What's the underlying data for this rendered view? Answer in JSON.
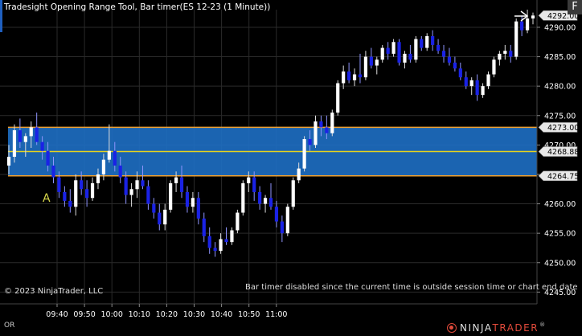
{
  "header": {
    "title": "Tradesight Opening Range Tool, Bar timer(ES 12-23 (1 Minute))",
    "corner_label": "F"
  },
  "footer": {
    "copyright": "© 2023 NinjaTrader, LLC",
    "bar_timer_message": "Bar timer disabled since the current time is outside session time or chart end date",
    "mode_label": "OR",
    "brand_prefix": "NINJA",
    "brand_suffix": "TRADER",
    "brand_mark": "®"
  },
  "chart_data": {
    "type": "candlestick",
    "instrument": "ES 12-23",
    "interval": "1 Minute",
    "ylim": [
      4243,
      4293
    ],
    "y_ticks": [
      4245,
      4250,
      4255,
      4260,
      4265,
      4270,
      4275,
      4280,
      4285,
      4290
    ],
    "y_tick_labels": [
      "4245.00",
      "4250.00",
      "4255.00",
      "4260.00",
      "4265.00",
      "4270.00",
      "4275.00",
      "4280.00",
      "4285.00",
      "4290.00"
    ],
    "x_ticks": [
      "09:40",
      "09:50",
      "10:00",
      "10:10",
      "10:20",
      "10:30",
      "10:40",
      "10:50",
      "11:00"
    ],
    "opening_range": {
      "high": 4273.0,
      "mid": 4268.88,
      "low": 4264.75,
      "high_label": "4273.00",
      "mid_label": "4268.88",
      "low_label": "4264.75",
      "annotation": "A"
    },
    "last_price": 4292.0,
    "last_price_label": "4292.00",
    "colors": {
      "up": "#ffffff",
      "down": "#1a22e6",
      "range_fill": "#1e6fc4",
      "range_border": "#f0a030",
      "range_mid": "#e6d21e",
      "grid": "#2a2a2a",
      "axis_text": "#ffffff",
      "annotation": "#d8d84a"
    },
    "candles": [
      {
        "o": 4266.5,
        "h": 4270.0,
        "l": 4265.0,
        "c": 4268.0
      },
      {
        "o": 4268.0,
        "h": 4273.5,
        "l": 4267.0,
        "c": 4272.5
      },
      {
        "o": 4272.5,
        "h": 4274.5,
        "l": 4269.5,
        "c": 4270.5
      },
      {
        "o": 4270.5,
        "h": 4272.0,
        "l": 4268.0,
        "c": 4271.5
      },
      {
        "o": 4271.5,
        "h": 4274.0,
        "l": 4269.5,
        "c": 4273.0
      },
      {
        "o": 4273.0,
        "h": 4275.5,
        "l": 4270.0,
        "c": 4270.5
      },
      {
        "o": 4270.5,
        "h": 4271.5,
        "l": 4267.5,
        "c": 4269.0
      },
      {
        "o": 4269.0,
        "h": 4270.5,
        "l": 4265.5,
        "c": 4266.5
      },
      {
        "o": 4266.5,
        "h": 4268.0,
        "l": 4263.5,
        "c": 4264.5
      },
      {
        "o": 4264.5,
        "h": 4265.5,
        "l": 4261.0,
        "c": 4262.0
      },
      {
        "o": 4262.0,
        "h": 4263.0,
        "l": 4259.5,
        "c": 4260.5
      },
      {
        "o": 4260.5,
        "h": 4262.5,
        "l": 4258.5,
        "c": 4259.5
      },
      {
        "o": 4259.5,
        "h": 4265.0,
        "l": 4258.0,
        "c": 4264.0
      },
      {
        "o": 4264.0,
        "h": 4265.5,
        "l": 4261.5,
        "c": 4262.5
      },
      {
        "o": 4262.5,
        "h": 4264.0,
        "l": 4259.5,
        "c": 4261.0
      },
      {
        "o": 4261.0,
        "h": 4264.5,
        "l": 4260.5,
        "c": 4263.5
      },
      {
        "o": 4263.5,
        "h": 4266.0,
        "l": 4262.5,
        "c": 4265.0
      },
      {
        "o": 4265.0,
        "h": 4268.5,
        "l": 4264.0,
        "c": 4267.5
      },
      {
        "o": 4267.5,
        "h": 4273.5,
        "l": 4267.0,
        "c": 4269.0
      },
      {
        "o": 4269.0,
        "h": 4270.5,
        "l": 4265.5,
        "c": 4266.5
      },
      {
        "o": 4266.5,
        "h": 4268.0,
        "l": 4263.5,
        "c": 4264.5
      },
      {
        "o": 4264.5,
        "h": 4265.5,
        "l": 4260.0,
        "c": 4261.5
      },
      {
        "o": 4261.5,
        "h": 4263.5,
        "l": 4259.5,
        "c": 4262.5
      },
      {
        "o": 4262.5,
        "h": 4265.5,
        "l": 4261.0,
        "c": 4264.0
      },
      {
        "o": 4264.0,
        "h": 4266.5,
        "l": 4262.5,
        "c": 4263.0
      },
      {
        "o": 4263.0,
        "h": 4264.0,
        "l": 4259.0,
        "c": 4260.0
      },
      {
        "o": 4260.0,
        "h": 4261.0,
        "l": 4257.5,
        "c": 4258.5
      },
      {
        "o": 4258.5,
        "h": 4260.0,
        "l": 4255.5,
        "c": 4256.5
      },
      {
        "o": 4256.5,
        "h": 4260.0,
        "l": 4255.5,
        "c": 4259.0
      },
      {
        "o": 4259.0,
        "h": 4264.0,
        "l": 4258.5,
        "c": 4263.5
      },
      {
        "o": 4263.5,
        "h": 4265.5,
        "l": 4262.0,
        "c": 4264.5
      },
      {
        "o": 4264.5,
        "h": 4266.5,
        "l": 4261.0,
        "c": 4262.0
      },
      {
        "o": 4262.0,
        "h": 4263.0,
        "l": 4258.5,
        "c": 4259.5
      },
      {
        "o": 4259.5,
        "h": 4262.0,
        "l": 4258.5,
        "c": 4261.0
      },
      {
        "o": 4261.0,
        "h": 4262.0,
        "l": 4256.5,
        "c": 4257.5
      },
      {
        "o": 4257.5,
        "h": 4258.5,
        "l": 4253.5,
        "c": 4254.5
      },
      {
        "o": 4254.5,
        "h": 4256.0,
        "l": 4251.5,
        "c": 4252.5
      },
      {
        "o": 4252.5,
        "h": 4253.5,
        "l": 4251.0,
        "c": 4252.0
      },
      {
        "o": 4252.0,
        "h": 4255.0,
        "l": 4251.5,
        "c": 4254.0
      },
      {
        "o": 4254.0,
        "h": 4256.0,
        "l": 4253.0,
        "c": 4253.5
      },
      {
        "o": 4253.5,
        "h": 4256.0,
        "l": 4253.0,
        "c": 4255.5
      },
      {
        "o": 4255.5,
        "h": 4259.0,
        "l": 4255.0,
        "c": 4258.5
      },
      {
        "o": 4258.5,
        "h": 4264.0,
        "l": 4258.0,
        "c": 4263.5
      },
      {
        "o": 4263.5,
        "h": 4265.5,
        "l": 4262.0,
        "c": 4264.5
      },
      {
        "o": 4264.5,
        "h": 4265.5,
        "l": 4260.5,
        "c": 4262.0
      },
      {
        "o": 4262.0,
        "h": 4263.0,
        "l": 4259.0,
        "c": 4260.0
      },
      {
        "o": 4260.0,
        "h": 4261.5,
        "l": 4258.5,
        "c": 4261.0
      },
      {
        "o": 4261.0,
        "h": 4263.5,
        "l": 4259.0,
        "c": 4259.5
      },
      {
        "o": 4259.5,
        "h": 4260.5,
        "l": 4256.0,
        "c": 4257.0
      },
      {
        "o": 4257.0,
        "h": 4258.0,
        "l": 4253.5,
        "c": 4255.0
      },
      {
        "o": 4255.0,
        "h": 4260.0,
        "l": 4254.5,
        "c": 4259.5
      },
      {
        "o": 4259.5,
        "h": 4264.5,
        "l": 4259.0,
        "c": 4264.0
      },
      {
        "o": 4264.0,
        "h": 4267.0,
        "l": 4263.5,
        "c": 4266.0
      },
      {
        "o": 4266.0,
        "h": 4271.5,
        "l": 4265.5,
        "c": 4271.0
      },
      {
        "o": 4271.0,
        "h": 4272.5,
        "l": 4269.0,
        "c": 4270.0
      },
      {
        "o": 4270.0,
        "h": 4275.0,
        "l": 4269.5,
        "c": 4274.0
      },
      {
        "o": 4274.0,
        "h": 4275.0,
        "l": 4271.5,
        "c": 4273.0
      },
      {
        "o": 4273.0,
        "h": 4275.0,
        "l": 4271.0,
        "c": 4272.0
      },
      {
        "o": 4272.0,
        "h": 4276.0,
        "l": 4271.5,
        "c": 4275.5
      },
      {
        "o": 4275.5,
        "h": 4281.0,
        "l": 4275.0,
        "c": 4280.5
      },
      {
        "o": 4280.5,
        "h": 4283.5,
        "l": 4279.5,
        "c": 4282.5
      },
      {
        "o": 4282.5,
        "h": 4284.0,
        "l": 4280.5,
        "c": 4281.0
      },
      {
        "o": 4281.0,
        "h": 4283.0,
        "l": 4280.0,
        "c": 4282.0
      },
      {
        "o": 4282.0,
        "h": 4285.5,
        "l": 4280.5,
        "c": 4281.5
      },
      {
        "o": 4281.5,
        "h": 4286.0,
        "l": 4281.0,
        "c": 4285.0
      },
      {
        "o": 4285.0,
        "h": 4286.5,
        "l": 4283.0,
        "c": 4283.5
      },
      {
        "o": 4283.5,
        "h": 4285.0,
        "l": 4282.0,
        "c": 4284.5
      },
      {
        "o": 4284.5,
        "h": 4287.0,
        "l": 4284.0,
        "c": 4286.5
      },
      {
        "o": 4286.5,
        "h": 4287.5,
        "l": 4284.5,
        "c": 4285.5
      },
      {
        "o": 4285.5,
        "h": 4288.0,
        "l": 4285.0,
        "c": 4287.5
      },
      {
        "o": 4287.5,
        "h": 4288.0,
        "l": 4283.5,
        "c": 4284.0
      },
      {
        "o": 4284.0,
        "h": 4286.0,
        "l": 4283.0,
        "c": 4285.5
      },
      {
        "o": 4285.5,
        "h": 4287.0,
        "l": 4284.0,
        "c": 4284.5
      },
      {
        "o": 4284.5,
        "h": 4288.5,
        "l": 4284.0,
        "c": 4288.0
      },
      {
        "o": 4288.0,
        "h": 4288.5,
        "l": 4286.0,
        "c": 4286.5
      },
      {
        "o": 4286.5,
        "h": 4289.0,
        "l": 4286.0,
        "c": 4288.5
      },
      {
        "o": 4288.5,
        "h": 4289.5,
        "l": 4286.0,
        "c": 4287.0
      },
      {
        "o": 4287.0,
        "h": 4288.0,
        "l": 4285.5,
        "c": 4286.0
      },
      {
        "o": 4286.0,
        "h": 4287.0,
        "l": 4284.0,
        "c": 4285.0
      },
      {
        "o": 4285.0,
        "h": 4286.5,
        "l": 4283.5,
        "c": 4284.0
      },
      {
        "o": 4284.0,
        "h": 4285.0,
        "l": 4282.5,
        "c": 4283.0
      },
      {
        "o": 4283.0,
        "h": 4284.0,
        "l": 4281.0,
        "c": 4281.5
      },
      {
        "o": 4281.5,
        "h": 4282.5,
        "l": 4279.5,
        "c": 4280.0
      },
      {
        "o": 4280.0,
        "h": 4281.5,
        "l": 4278.5,
        "c": 4281.0
      },
      {
        "o": 4281.0,
        "h": 4282.0,
        "l": 4277.5,
        "c": 4278.5
      },
      {
        "o": 4278.5,
        "h": 4280.5,
        "l": 4278.0,
        "c": 4280.0
      },
      {
        "o": 4280.0,
        "h": 4282.5,
        "l": 4279.5,
        "c": 4282.0
      },
      {
        "o": 4282.0,
        "h": 4285.0,
        "l": 4281.5,
        "c": 4284.5
      },
      {
        "o": 4284.5,
        "h": 4286.0,
        "l": 4283.5,
        "c": 4285.5
      },
      {
        "o": 4285.5,
        "h": 4287.0,
        "l": 4284.5,
        "c": 4286.0
      },
      {
        "o": 4286.0,
        "h": 4287.0,
        "l": 4284.0,
        "c": 4285.0
      },
      {
        "o": 4285.0,
        "h": 4291.5,
        "l": 4284.5,
        "c": 4291.0
      },
      {
        "o": 4291.0,
        "h": 4292.0,
        "l": 4288.5,
        "c": 4289.5
      },
      {
        "o": 4289.5,
        "h": 4293.0,
        "l": 4289.0,
        "c": 4291.5
      },
      {
        "o": 4291.5,
        "h": 4292.5,
        "l": 4290.5,
        "c": 4292.0
      }
    ]
  }
}
